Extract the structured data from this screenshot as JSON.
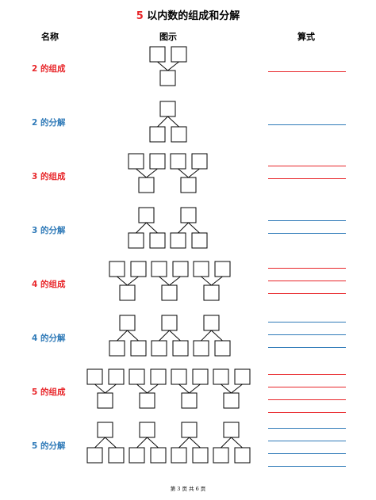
{
  "title": {
    "number": "5",
    "text": " 以内数的组成和分解",
    "number_color": "#e8262a"
  },
  "headers": {
    "name": "名称",
    "diagram": "图示",
    "formula": "算式"
  },
  "rows": [
    {
      "label": "2 的组成",
      "color": "red",
      "kind": "compose",
      "groups": 1
    },
    {
      "label": "2 的分解",
      "color": "blue",
      "kind": "decompose",
      "groups": 1
    },
    {
      "label": "3 的组成",
      "color": "red",
      "kind": "compose",
      "groups": 2
    },
    {
      "label": "3 的分解",
      "color": "blue",
      "kind": "decompose",
      "groups": 2
    },
    {
      "label": "4 的组成",
      "color": "red",
      "kind": "compose",
      "groups": 3
    },
    {
      "label": "4 的分解",
      "color": "blue",
      "kind": "decompose",
      "groups": 3
    },
    {
      "label": "5 的组成",
      "color": "red",
      "kind": "compose",
      "groups": 4
    },
    {
      "label": "5 的分解",
      "color": "blue",
      "kind": "decompose",
      "groups": 4
    }
  ],
  "colors": {
    "red": "#e8262a",
    "blue": "#2f7ab8"
  },
  "footer": "第 3 页 共 6 页"
}
